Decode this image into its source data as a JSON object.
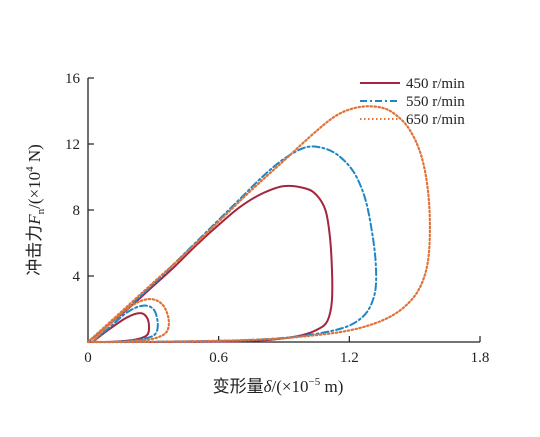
{
  "chart_data": {
    "type": "line",
    "xlabel": "变形量δ/(×10⁻⁵ m)",
    "ylabel": "冲击力Fₙ/(×10⁴ N)",
    "xlabel_parts": {
      "main": "变形量",
      "symbol": "δ",
      "unit_open": "/(×10",
      "exp": "−5",
      "unit_close": " m)"
    },
    "ylabel_parts": {
      "main": "冲击力",
      "symbol": "F",
      "sub": "n",
      "unit_open": "/(×10",
      "exp": "4",
      "unit_close": " N)"
    },
    "xlim": [
      0,
      1.8
    ],
    "ylim": [
      0,
      16
    ],
    "xticks": [
      "0",
      "0.6",
      "1.2",
      "1.8"
    ],
    "yticks": [
      "4",
      "8",
      "12",
      "16"
    ],
    "xtick_values": [
      0,
      0.6,
      1.2,
      1.8
    ],
    "ytick_values": [
      4,
      8,
      12,
      16
    ],
    "legend_position": "top-right",
    "grid": false,
    "series": [
      {
        "name": "450 r/min",
        "color": "#a3253f",
        "style": "solid",
        "main_loop": {
          "x": [
            0.0,
            0.1,
            0.2,
            0.3,
            0.4,
            0.5,
            0.6,
            0.7,
            0.8,
            0.9,
            1.0,
            1.05,
            1.09,
            1.11,
            1.12,
            1.12,
            1.1,
            1.06,
            0.98,
            0.85,
            0.7,
            0.5,
            0.3,
            0.15,
            0.05,
            0.0
          ],
          "y": [
            0.0,
            1.1,
            2.2,
            3.4,
            4.6,
            5.9,
            7.1,
            8.2,
            9.0,
            9.45,
            9.3,
            8.9,
            8.0,
            6.5,
            4.5,
            2.5,
            1.3,
            0.8,
            0.4,
            0.15,
            0.05,
            0.02,
            0.0,
            0.0,
            0.0,
            0.0
          ]
        },
        "small_loop": {
          "x": [
            0.02,
            0.1,
            0.18,
            0.24,
            0.27,
            0.28,
            0.27,
            0.22,
            0.15,
            0.08,
            0.03
          ],
          "y": [
            0.0,
            0.8,
            1.5,
            1.75,
            1.5,
            0.9,
            0.4,
            0.15,
            0.05,
            0.0,
            0.0
          ]
        }
      },
      {
        "name": "550 r/min",
        "color": "#1f86c6",
        "style": "dashdot",
        "main_loop": {
          "x": [
            0.0,
            0.1,
            0.2,
            0.3,
            0.4,
            0.5,
            0.6,
            0.7,
            0.8,
            0.9,
            1.0,
            1.08,
            1.15,
            1.22,
            1.27,
            1.3,
            1.32,
            1.32,
            1.29,
            1.24,
            1.17,
            1.05,
            0.9,
            0.7,
            0.5,
            0.3,
            0.1,
            0.0
          ],
          "y": [
            0.0,
            1.1,
            2.3,
            3.5,
            4.8,
            6.1,
            7.4,
            8.7,
            10.0,
            11.1,
            11.8,
            11.75,
            11.3,
            10.3,
            8.8,
            7.0,
            5.0,
            3.2,
            2.0,
            1.3,
            0.85,
            0.5,
            0.25,
            0.1,
            0.05,
            0.02,
            0.0,
            0.0
          ]
        },
        "small_loop": {
          "x": [
            0.02,
            0.1,
            0.18,
            0.25,
            0.3,
            0.32,
            0.31,
            0.26,
            0.18,
            0.1,
            0.03
          ],
          "y": [
            0.0,
            0.9,
            1.8,
            2.2,
            2.0,
            1.2,
            0.5,
            0.2,
            0.05,
            0.0,
            0.0
          ]
        }
      },
      {
        "name": "650 r/min",
        "color": "#e0733a",
        "style": "dotted",
        "main_loop": {
          "x": [
            0.0,
            0.15,
            0.3,
            0.45,
            0.6,
            0.75,
            0.9,
            1.05,
            1.15,
            1.25,
            1.35,
            1.42,
            1.48,
            1.53,
            1.56,
            1.57,
            1.56,
            1.52,
            1.45,
            1.35,
            1.2,
            1.0,
            0.8,
            0.5,
            0.2,
            0.0
          ],
          "y": [
            0.0,
            1.8,
            3.6,
            5.4,
            7.3,
            9.2,
            11.0,
            12.8,
            13.8,
            14.25,
            14.2,
            13.7,
            12.8,
            11.3,
            9.3,
            7.0,
            4.8,
            3.2,
            2.1,
            1.3,
            0.7,
            0.35,
            0.15,
            0.05,
            0.0,
            0.0
          ]
        },
        "small_loop": {
          "x": [
            0.02,
            0.1,
            0.2,
            0.28,
            0.34,
            0.37,
            0.36,
            0.3,
            0.2,
            0.1,
            0.03
          ],
          "y": [
            0.0,
            1.1,
            2.2,
            2.6,
            2.3,
            1.4,
            0.6,
            0.2,
            0.05,
            0.0,
            0.0
          ]
        }
      }
    ]
  }
}
